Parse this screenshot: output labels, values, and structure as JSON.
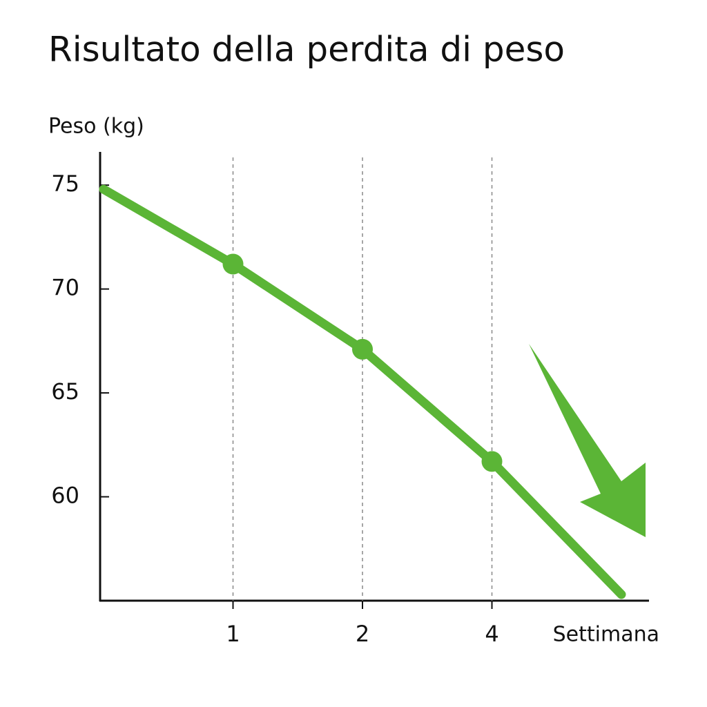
{
  "chart_data": {
    "type": "line",
    "title": "Risultato della perdita di peso",
    "y_label": "Peso (kg)",
    "x_label": "Settimana",
    "categories": [
      null,
      "1",
      "2",
      "4",
      null
    ],
    "series": [
      {
        "name": null,
        "color": "#5bb536",
        "values": [
          74.8,
          71.2,
          67.1,
          61.7,
          55.3
        ]
      }
    ],
    "ylim": [
      55,
      76.6
    ],
    "yticks": [
      60,
      65,
      70,
      75
    ],
    "grid": "x-dashed"
  }
}
